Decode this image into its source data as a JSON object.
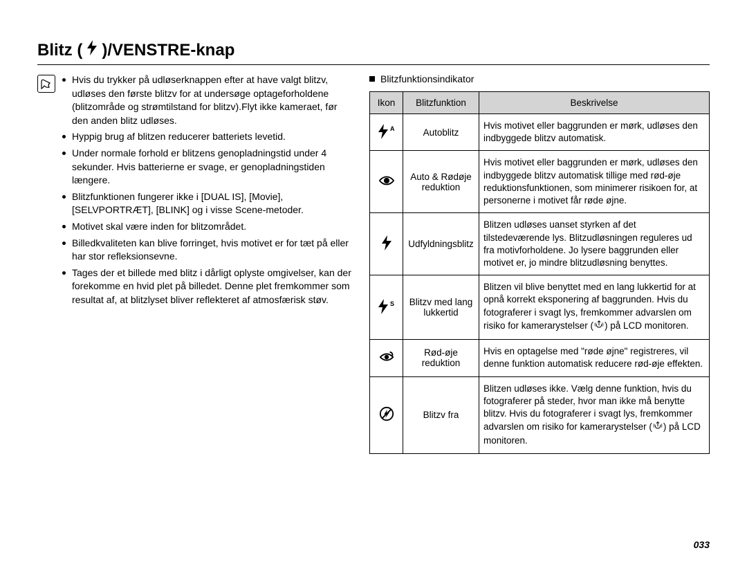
{
  "title": {
    "prefix": "Blitz (",
    "suffix": ")/VENSTRE-knap"
  },
  "notes": [
    "Hvis du trykker på udløserknappen efter at have valgt blitzv, udløses den første blitzv for at undersøge optageforholdene (blitzområde og strømtilstand for blitzv).Flyt ikke kameraet, før den anden blitz udløses.",
    "Hyppig brug af blitzen reducerer batteriets levetid.",
    "Under normale forhold er blitzens genopladningstid under 4 sekunder. Hvis batterierne er svage, er genopladningstiden længere.",
    "Blitzfunktionen fungerer ikke i [DUAL IS], [Movie], [SELVPORTRÆT], [BLINK] og i visse Scene-metoder.",
    "Motivet skal være inden for blitzområdet.",
    "Billedkvaliteten kan blive forringet, hvis motivet er for tæt på eller har stor refleksionsevne.",
    "Tages der et billede med blitz i dårligt oplyste omgivelser, kan der forekomme en hvid plet på billedet. Denne plet fremkommer som resultat af, at blitzlyset bliver reflekteret af atmosfærisk støv."
  ],
  "table": {
    "heading": "Blitzfunktionsindikator",
    "headers": {
      "icon": "Ikon",
      "func": "Blitzfunktion",
      "desc": "Beskrivelse"
    },
    "rows": [
      {
        "icon": "flash-a",
        "func": "Autoblitz",
        "desc": "Hvis motivet eller baggrunden er mørk, udløses den indbyggede blitzv automatisk."
      },
      {
        "icon": "eye",
        "func": "Auto & Rødøje reduktion",
        "desc": "Hvis motivet eller baggrunden er mørk, udløses den indbyggede blitzv automatisk tillige med rød-øje reduktionsfunktionen, som minimerer risikoen for, at personerne i motivet får røde øjne."
      },
      {
        "icon": "flash",
        "func": "Udfyldningsblitz",
        "desc": "Blitzen udløses uanset styrken af det tilstedeværende lys. Blitzudløsningen reguleres ud fra motivforholdene. Jo lysere baggrunden eller motivet er, jo mindre blitzudløsning benyttes."
      },
      {
        "icon": "flash-s",
        "func": "Blitzv med lang lukkertid",
        "desc_pre": "Blitzen vil blive benyttet med en lang lukkertid for at opnå korrekt eksponering af baggrunden. Hvis du fotograferer i svagt lys, fremkommer advarslen om risiko for kamerarystelser (",
        "desc_post": ") på LCD monitoren."
      },
      {
        "icon": "eye-fix",
        "func": "Rød-øje reduktion",
        "desc": "Hvis en optagelse med \"røde øjne\" registreres, vil denne funktion automatisk reducere rød-øje effekten."
      },
      {
        "icon": "flash-off",
        "func": "Blitzv fra",
        "desc_pre": "Blitzen udløses ikke. Vælg denne funktion, hvis du fotograferer på steder, hvor man ikke må benytte blitzv. Hvis du fotograferer i svagt lys, fremkommer advarslen om risiko for kamerarystelser (",
        "desc_post": ") på LCD monitoren."
      }
    ]
  },
  "page_number": "033"
}
